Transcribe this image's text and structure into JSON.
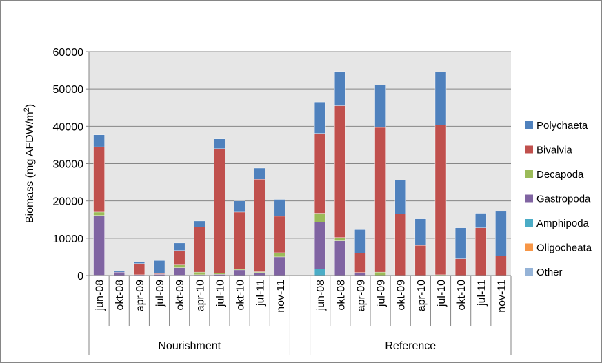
{
  "chart_data": {
    "type": "bar",
    "stacked": true,
    "title": "",
    "ylabel_main": "Biomass (mg AFDW/m",
    "ylabel_sup": "2",
    "ylabel_tail": ")",
    "ylim": [
      0,
      60000
    ],
    "yticks": [
      "0",
      "10000",
      "20000",
      "30000",
      "40000",
      "50000",
      "60000"
    ],
    "grid": true,
    "legend_position": "right",
    "groups": [
      {
        "label": "Nourishment",
        "categories": [
          "jun-08",
          "okt-08",
          "apr-09",
          "jul-09",
          "okt-09",
          "apr-10",
          "jul-10",
          "okt-10",
          "jul-11",
          "nov-11"
        ]
      },
      {
        "label": "Reference",
        "categories": [
          "jun-08",
          "okt-08",
          "apr-09",
          "jul-09",
          "okt-09",
          "apr-10",
          "jul-10",
          "okt-10",
          "jul-11",
          "nov-11"
        ]
      }
    ],
    "series": [
      {
        "name": "Other",
        "color": "#95B3D7",
        "values": [
          0,
          0,
          0,
          0,
          0,
          0,
          0,
          0,
          0,
          0,
          0,
          0,
          0,
          0,
          0,
          0,
          0,
          0,
          0,
          0
        ]
      },
      {
        "name": "Oligocheata",
        "color": "#F79646",
        "values": [
          0,
          0,
          0,
          0,
          0,
          0,
          0,
          0,
          0,
          0,
          0,
          0,
          0,
          0,
          0,
          0,
          0,
          0,
          0,
          0
        ]
      },
      {
        "name": "Amphipoda",
        "color": "#4BACC6",
        "values": [
          100,
          0,
          0,
          0,
          100,
          0,
          0,
          0,
          0,
          0,
          1800,
          0,
          0,
          0,
          0,
          0,
          0,
          0,
          0,
          0
        ]
      },
      {
        "name": "Gastropoda",
        "color": "#8064A2",
        "values": [
          16000,
          900,
          200,
          300,
          2000,
          200,
          300,
          1500,
          800,
          5000,
          12500,
          9300,
          800,
          0,
          0,
          0,
          0,
          0,
          0,
          0
        ]
      },
      {
        "name": "Decapoda",
        "color": "#9BBB59",
        "values": [
          900,
          0,
          0,
          0,
          900,
          700,
          300,
          200,
          200,
          1100,
          2400,
          900,
          0,
          900,
          0,
          0,
          200,
          0,
          0,
          0
        ]
      },
      {
        "name": "Bivalvia",
        "color": "#C0504D",
        "values": [
          17500,
          0,
          3000,
          200,
          3700,
          12100,
          33400,
          15300,
          24800,
          9800,
          21400,
          35300,
          5200,
          38800,
          16500,
          8100,
          40100,
          4500,
          12800,
          5300
        ]
      },
      {
        "name": "Polychaeta",
        "color": "#4F81BD",
        "values": [
          3200,
          300,
          400,
          3500,
          2000,
          1600,
          2600,
          3000,
          3000,
          4500,
          8400,
          9200,
          6300,
          11400,
          9100,
          7100,
          14200,
          8300,
          3900,
          11900
        ]
      }
    ]
  }
}
